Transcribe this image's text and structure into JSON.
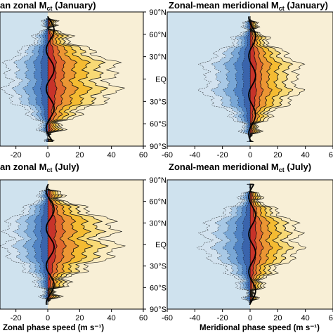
{
  "chart_data": [
    {
      "type": "heatmap",
      "title_prefix": "an zonal M",
      "title_sub": "ct",
      "title_suffix": " (January)",
      "xlabel": "",
      "xlim": [
        -30,
        60
      ],
      "x_ticks": [
        "-20",
        "0",
        "20",
        "40",
        "60"
      ],
      "x_tick_values": [
        -20,
        0,
        20,
        40,
        60
      ],
      "ylim": [
        -90,
        90
      ],
      "y_ticks": [
        "90°N",
        "60°N",
        "30°N",
        "EQ",
        "30°S",
        "60°S",
        "90°S"
      ],
      "y_tick_values": [
        90,
        60,
        30,
        0,
        -30,
        -60,
        -90
      ],
      "west_extent": 30,
      "east_extent": 48,
      "peak_latitudes": [
        15,
        -15
      ]
    },
    {
      "type": "heatmap",
      "title_prefix": "Zonal-mean meridional M",
      "title_sub": "ct",
      "title_suffix": " (January)",
      "xlabel": "",
      "xlim": [
        -60,
        60
      ],
      "x_ticks": [
        "-60",
        "-40",
        "-20",
        "0",
        "20",
        "40",
        "60"
      ],
      "x_tick_values": [
        -60,
        -40,
        -20,
        0,
        20,
        40,
        60
      ],
      "ylim": [
        -90,
        90
      ],
      "y_ticks": [],
      "y_tick_values": [],
      "west_extent": 38,
      "east_extent": 40,
      "peak_latitudes": [
        15,
        -15
      ]
    },
    {
      "type": "heatmap",
      "title_prefix": "an zonal M",
      "title_sub": "ct",
      "title_suffix": " (July)",
      "xlabel": "Zonal phase speed (m s⁻¹)",
      "xlim": [
        -30,
        60
      ],
      "x_ticks": [
        "-20",
        "0",
        "20",
        "40",
        "60"
      ],
      "x_tick_values": [
        -20,
        0,
        20,
        40,
        60
      ],
      "ylim": [
        -90,
        90
      ],
      "y_ticks": [
        "90°N",
        "60°N",
        "30°N",
        "EQ",
        "30°S",
        "60°S",
        "90°S"
      ],
      "y_tick_values": [
        90,
        60,
        30,
        0,
        -30,
        -60,
        -90
      ],
      "west_extent": 30,
      "east_extent": 48,
      "peak_latitudes": [
        25,
        -5
      ]
    },
    {
      "type": "heatmap",
      "title_prefix": "Zonal-mean meridional M",
      "title_sub": "ct",
      "title_suffix": " (July)",
      "xlabel": "Meridional phase speed (m s⁻¹)",
      "xlim": [
        -60,
        60
      ],
      "x_ticks": [
        "-60",
        "-40",
        "-20",
        "0",
        "20",
        "40",
        "60"
      ],
      "x_tick_values": [
        -60,
        -40,
        -20,
        0,
        20,
        40,
        60
      ],
      "ylim": [
        -90,
        90
      ],
      "y_ticks": [],
      "y_tick_values": [],
      "west_extent": 38,
      "east_extent": 40,
      "peak_latitudes": [
        20,
        -5
      ]
    }
  ],
  "colors": {
    "west_fill": [
      "#d2e2ef",
      "#a9c9e6",
      "#79a7d6",
      "#4f82c3",
      "#3a64ac"
    ],
    "east_fill": [
      "#faebc0",
      "#f8d975",
      "#f4bb32",
      "#ec9634",
      "#e0672d",
      "#c7332a"
    ],
    "left_background": "#cfe2ee",
    "right_background": "#f8efd6",
    "contour": "#111111"
  }
}
